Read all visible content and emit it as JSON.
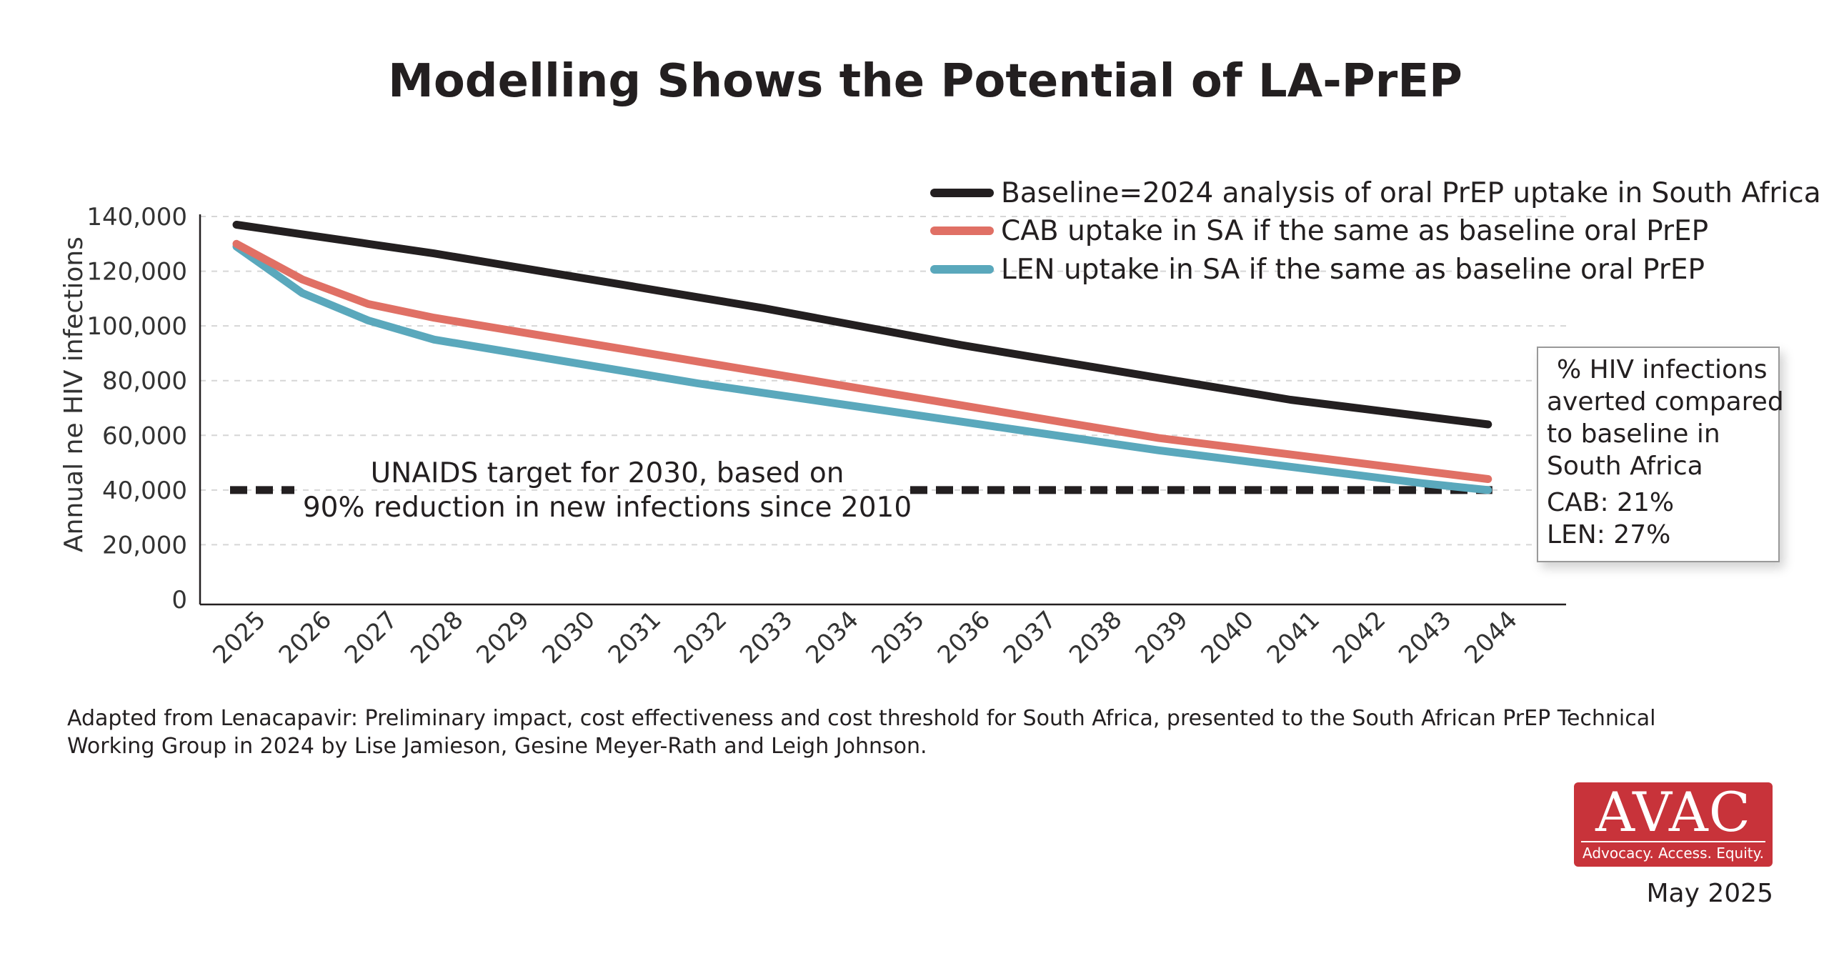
{
  "chart_data": {
    "type": "line",
    "title": "Modelling Shows the Potential of LA-PrEP",
    "ylabel": "Annual ne HIV infections",
    "xlabel": "",
    "ylim": [
      0,
      140000
    ],
    "yticks": [
      0,
      20000,
      40000,
      60000,
      80000,
      100000,
      120000,
      140000
    ],
    "ytick_labels": [
      "0",
      "20,000",
      "40,000",
      "60,000",
      "80,000",
      "100,000",
      "120,000",
      "140,000"
    ],
    "grid": "horizontal dashed",
    "legend_position": "top-right",
    "x": [
      "2025",
      "2026",
      "2027",
      "2028",
      "2029",
      "2030",
      "2031",
      "2032",
      "2033",
      "2034",
      "2035",
      "2036",
      "2037",
      "2038",
      "2039",
      "2040",
      "2041",
      "2042",
      "2043",
      "2044"
    ],
    "series": [
      {
        "name": "Baseline=2024 analysis of oral PrEP uptake in South Africa",
        "color": "#231f20",
        "values": [
          137000,
          133500,
          130000,
          126500,
          122500,
          118500,
          114500,
          110500,
          106500,
          102000,
          97500,
          93000,
          89000,
          85000,
          81000,
          77000,
          73000,
          70000,
          67000,
          64000
        ]
      },
      {
        "name": "CAB uptake in SA if the same as baseline oral PrEP",
        "color": "#e07065",
        "values": [
          130000,
          117000,
          108000,
          103000,
          99000,
          95000,
          91000,
          87000,
          83000,
          79000,
          75000,
          71000,
          67000,
          63000,
          59000,
          56000,
          53000,
          50000,
          47000,
          44000
        ]
      },
      {
        "name": "LEN uptake in SA if the same as baseline oral PrEP",
        "color": "#5aa8bc",
        "values": [
          129000,
          112000,
          102000,
          95000,
          91000,
          87000,
          83000,
          79000,
          75500,
          72000,
          68500,
          65000,
          61500,
          58000,
          54500,
          51500,
          48500,
          45500,
          42500,
          40000
        ]
      }
    ],
    "target": {
      "value": 40000,
      "label_lines": [
        "UNAIDS target for 2030, based on",
        "90% reduction in new infections since 2010"
      ],
      "color": "#231f20"
    }
  },
  "note_box": {
    "lines": [
      "% HIV infections",
      "averted compared",
      "to baseline in",
      "South Africa"
    ],
    "cab": "CAB: 21%",
    "len": "LEN: 27%"
  },
  "source": {
    "line1": "Adapted from Lenacapavir: Preliminary impact, cost effectiveness and cost threshold for South Africa, presented to the South African PrEP Technical",
    "line2": "Working Group in 2024 by Lise Jamieson, Gesine Meyer-Rath and Leigh Johnson."
  },
  "logo": {
    "name": "AVAC",
    "tagline": "Advocacy. Access. Equity.",
    "color": "#c8333a"
  },
  "date": "May 2025"
}
